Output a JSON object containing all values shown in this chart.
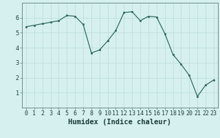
{
  "x": [
    0,
    1,
    2,
    3,
    4,
    5,
    6,
    7,
    8,
    9,
    10,
    11,
    12,
    13,
    14,
    15,
    16,
    17,
    18,
    19,
    20,
    21,
    22,
    23
  ],
  "y": [
    5.4,
    5.5,
    5.6,
    5.7,
    5.8,
    6.15,
    6.1,
    5.55,
    3.65,
    3.85,
    4.45,
    5.15,
    6.35,
    6.4,
    5.8,
    6.1,
    6.05,
    4.95,
    3.55,
    2.9,
    2.15,
    0.75,
    1.5,
    1.85
  ],
  "xlabel": "Humidex (Indice chaleur)",
  "xlim": [
    -0.5,
    23.5
  ],
  "ylim": [
    0,
    7
  ],
  "yticks": [
    1,
    2,
    3,
    4,
    5,
    6
  ],
  "xticks": [
    0,
    1,
    2,
    3,
    4,
    5,
    6,
    7,
    8,
    9,
    10,
    11,
    12,
    13,
    14,
    15,
    16,
    17,
    18,
    19,
    20,
    21,
    22,
    23
  ],
  "line_color": "#2e6b5e",
  "marker_color": "#2e6b5e",
  "bg_color": "#d6f0ef",
  "grid_color": "#b8dbd9",
  "axis_color": "#5a7a78",
  "text_color": "#1a3c3a",
  "font_size_tick": 6,
  "font_size_xlabel": 7.5
}
